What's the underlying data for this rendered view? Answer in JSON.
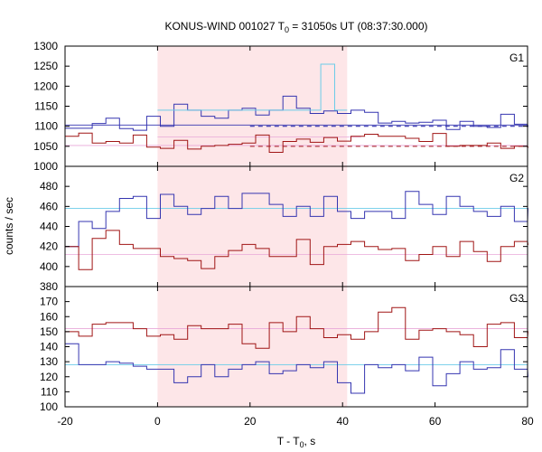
{
  "chart_data": {
    "type": "line",
    "title_main": "KONUS-WIND 001027 T",
    "title_sub": "0",
    "title_rest": " = 31050s UT (08:37:30.000)",
    "xlabel_main": "T - T",
    "xlabel_sub": "0",
    "xlabel_rest": ", s",
    "ylabel": "counts / sec",
    "xlim": [
      -20,
      80
    ],
    "x_ticks": [
      -20,
      0,
      20,
      40,
      60,
      80
    ],
    "x_tick_labels": [
      "-20",
      "0",
      "20",
      "40",
      "60",
      "80"
    ],
    "shaded_region": {
      "x": [
        0,
        41
      ],
      "color": "#fde6e8"
    },
    "colors": {
      "blue": "#3535b0",
      "red": "#a01515",
      "cyan": "#6ccce8",
      "pink": "#e8a8d8"
    },
    "bin_width": 2.944,
    "panels": [
      {
        "name": "G1",
        "ylim": [
          1000,
          1300
        ],
        "y_ticks": [
          1000,
          1050,
          1100,
          1150,
          1200,
          1250,
          1300
        ],
        "y_tick_labels": [
          "1000",
          "1050",
          "1100",
          "1150",
          "1200",
          "1250",
          "1300"
        ],
        "series": [
          {
            "color": "blue",
            "x0": -20,
            "values": [
              1095,
              1095,
              1107,
              1120,
              1094,
              1090,
              1125,
              1100,
              1155,
              1140,
              1125,
              1120,
              1140,
              1145,
              1128,
              1140,
              1175,
              1145,
              1132,
              1138,
              1132,
              1140,
              1135,
              1108,
              1112,
              1108,
              1110,
              1115,
              1092,
              1112,
              1100,
              1097,
              1130,
              1105,
              1100
            ]
          },
          {
            "color": "red",
            "x0": -20,
            "values": [
              1075,
              1083,
              1058,
              1062,
              1058,
              1078,
              1048,
              1045,
              1065,
              1043,
              1050,
              1052,
              1055,
              1058,
              1078,
              1035,
              1062,
              1068,
              1060,
              1072,
              1063,
              1075,
              1080,
              1075,
              1075,
              1070,
              1062,
              1082,
              1050,
              1052,
              1052,
              1058,
              1045,
              1050,
              1048
            ]
          }
        ],
        "extra_steps": [
          {
            "color": "cyan",
            "points": [
              [
                0,
                1140
              ],
              [
                35.3,
                1140
              ],
              [
                35.3,
                1255
              ],
              [
                38.3,
                1255
              ],
              [
                38.3,
                1140
              ],
              [
                41,
                1140
              ]
            ]
          }
        ],
        "hlines": [
          {
            "color": "blue",
            "y": 1103,
            "x": [
              -20,
              80
            ],
            "dashed": false,
            "width": 0.8
          },
          {
            "color": "blue",
            "y": 1100,
            "x": [
              20,
              80
            ],
            "dashed": true,
            "width": 1.2
          },
          {
            "color": "red",
            "y": 1050,
            "x": [
              20,
              80
            ],
            "dashed": true,
            "width": 1.2
          },
          {
            "color": "pink",
            "y": 1052,
            "x": [
              -20,
              80
            ],
            "dashed": false,
            "width": 0.8
          },
          {
            "color": "pink",
            "y": 1073,
            "x": [
              0,
              44
            ],
            "dashed": false,
            "width": 0.8
          }
        ]
      },
      {
        "name": "G2",
        "ylim": [
          380,
          500
        ],
        "y_ticks": [
          380,
          400,
          420,
          440,
          460,
          480
        ],
        "y_tick_labels": [
          "380",
          "400",
          "420",
          "440",
          "460",
          "480"
        ],
        "series": [
          {
            "color": "blue",
            "x0": -20,
            "values": [
              420,
              445,
              438,
              455,
              468,
              470,
              448,
              472,
              460,
              452,
              458,
              470,
              458,
              473,
              473,
              462,
              450,
              460,
              450,
              470,
              455,
              448,
              455,
              455,
              448,
              475,
              462,
              452,
              470,
              460,
              455,
              450,
              460,
              445,
              458
            ]
          },
          {
            "color": "red",
            "x0": -20,
            "values": [
              420,
              397,
              428,
              436,
              422,
              418,
              418,
              410,
              408,
              406,
              398,
              410,
              416,
              422,
              418,
              410,
              410,
              427,
              402,
              420,
              422,
              425,
              420,
              417,
              418,
              406,
              412,
              420,
              410,
              425,
              415,
              405,
              420,
              425,
              422
            ]
          }
        ],
        "extra_steps": [],
        "hlines": [
          {
            "color": "cyan",
            "y": 458,
            "x": [
              -20,
              80
            ],
            "dashed": false,
            "width": 0.8
          },
          {
            "color": "pink",
            "y": 412,
            "x": [
              -20,
              80
            ],
            "dashed": false,
            "width": 0.8
          }
        ]
      },
      {
        "name": "G3",
        "ylim": [
          100,
          180
        ],
        "y_ticks": [
          100,
          110,
          120,
          130,
          140,
          150,
          160,
          170
        ],
        "y_tick_labels": [
          "100",
          "110",
          "120",
          "130",
          "140",
          "150",
          "160",
          "170"
        ],
        "series": [
          {
            "color": "blue",
            "x0": -20,
            "values": [
              142,
              128,
              128,
              130,
              129,
              127,
              125,
              125,
              116,
              120,
              128,
              120,
              125,
              128,
              130,
              122,
              124,
              128,
              126,
              130,
              116,
              109,
              128,
              126,
              128,
              124,
              133,
              114,
              122,
              130,
              125,
              126,
              138,
              125,
              120
            ]
          },
          {
            "color": "red",
            "x0": -20,
            "values": [
              150,
              147,
              155,
              156,
              156,
              152,
              147,
              148,
              145,
              154,
              152,
              152,
              155,
              142,
              139,
              156,
              150,
              160,
              152,
              146,
              148,
              145,
              150,
              163,
              166,
              145,
              151,
              152,
              150,
              148,
              140,
              155,
              156,
              146,
              150
            ]
          }
        ],
        "extra_steps": [],
        "hlines": [
          {
            "color": "cyan",
            "y": 128,
            "x": [
              -20,
              80
            ],
            "dashed": false,
            "width": 0.8
          },
          {
            "color": "pink",
            "y": 152,
            "x": [
              -20,
              80
            ],
            "dashed": false,
            "width": 0.8
          }
        ]
      }
    ]
  }
}
